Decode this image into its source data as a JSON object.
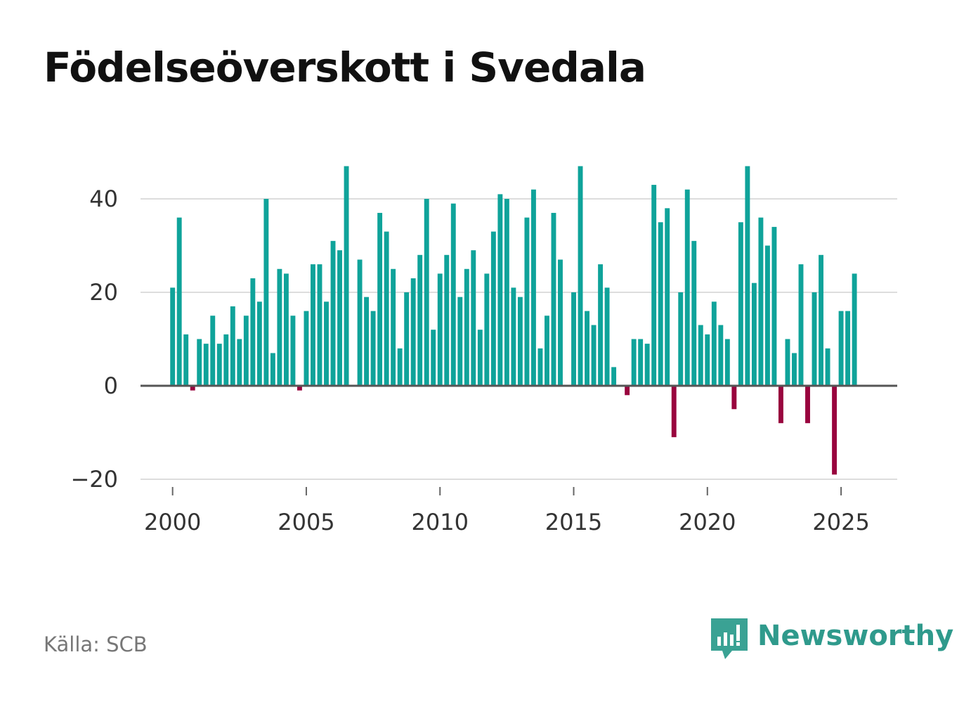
{
  "title": "Födelseöverskott i Svedala",
  "source": "Källa: SCB",
  "brand": {
    "name": "Newsworthy",
    "icon": "bar-chart-speech-bubble-icon"
  },
  "colors": {
    "positive": "#0fa39a",
    "negative": "#99043e",
    "baseline": "#555555",
    "grid": "#dddddd",
    "brand": "#2f9a8c"
  },
  "chart_data": {
    "type": "bar",
    "title": "Födelseöverskott i Svedala",
    "xlabel": "",
    "ylabel": "",
    "x_start": 2000.0,
    "x_step": 0.25,
    "xlim": [
      1998.8,
      2027.1
    ],
    "ylim": [
      -20,
      48
    ],
    "yticks": [
      -20,
      0,
      20,
      40
    ],
    "ytick_labels": [
      "−20",
      "0",
      "20",
      "40"
    ],
    "xticks": [
      2000,
      2005,
      2010,
      2015,
      2020,
      2025
    ],
    "xtick_labels": [
      "2000",
      "2005",
      "2010",
      "2015",
      "2020",
      "2025"
    ],
    "grid": true,
    "series": [
      {
        "name": "Födelseöverskott",
        "values": [
          21,
          36,
          11,
          -1,
          10,
          9,
          15,
          9,
          11,
          17,
          10,
          15,
          23,
          18,
          40,
          7,
          25,
          24,
          15,
          -1,
          16,
          26,
          26,
          18,
          31,
          29,
          47,
          0,
          27,
          19,
          16,
          37,
          33,
          25,
          8,
          20,
          23,
          28,
          40,
          12,
          24,
          28,
          39,
          19,
          25,
          29,
          12,
          24,
          33,
          41,
          40,
          21,
          19,
          36,
          42,
          8,
          15,
          37,
          27,
          0,
          20,
          47,
          16,
          13,
          26,
          21,
          4,
          0,
          -2,
          10,
          10,
          9,
          43,
          35,
          38,
          -11,
          20,
          42,
          31,
          13,
          11,
          18,
          13,
          10,
          -5,
          35,
          47,
          22,
          36,
          30,
          34,
          -8,
          10,
          7,
          26,
          -8,
          20,
          28,
          8,
          -19,
          16,
          16,
          24
        ]
      }
    ]
  }
}
